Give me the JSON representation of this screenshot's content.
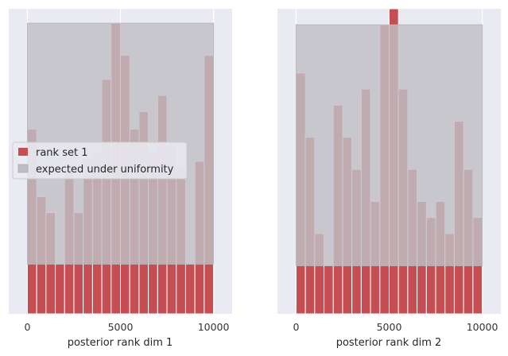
{
  "chart_data": [
    {
      "type": "bar",
      "xlabel": "posterior rank dim 1",
      "ylabel": "",
      "xlim": [
        -1000,
        11000
      ],
      "xticks": [
        0,
        5000,
        10000
      ],
      "xtick_labels": [
        "0",
        "5000",
        "10000"
      ],
      "ylim": [
        0,
        19
      ],
      "grid": true,
      "bin_edges": [
        0,
        500,
        1000,
        1500,
        2000,
        2500,
        3000,
        3500,
        4000,
        4500,
        5000,
        5500,
        6000,
        6500,
        7000,
        7500,
        8000,
        8500,
        9000,
        9500,
        10000
      ],
      "series": [
        {
          "name": "rank set 1",
          "color": "#c44e52",
          "values": [
            11.5,
            7.3,
            6.3,
            3.1,
            9.2,
            6.3,
            9.7,
            10.1,
            14.6,
            18.1,
            16.1,
            11.5,
            12.6,
            10.1,
            13.6,
            10.6,
            9.2,
            3.1,
            9.5,
            16.1
          ]
        },
        {
          "name": "expected under uniformity",
          "color": "#808080",
          "band": [
            3.1,
            18.1
          ]
        }
      ],
      "legend": {
        "placement": "center-left"
      }
    },
    {
      "type": "bar",
      "xlabel": "posterior rank dim 2",
      "ylabel": "",
      "xlim": [
        -1000,
        11000
      ],
      "xticks": [
        0,
        5000,
        10000
      ],
      "xtick_labels": [
        "0",
        "5000",
        "10000"
      ],
      "ylim": [
        0,
        19
      ],
      "grid": true,
      "bin_edges": [
        0,
        500,
        1000,
        1500,
        2000,
        2500,
        3000,
        3500,
        4000,
        4500,
        5000,
        5500,
        6000,
        6500,
        7000,
        7500,
        8000,
        8500,
        9000,
        9500,
        10000
      ],
      "series": [
        {
          "name": "rank set 1",
          "color": "#c44e52",
          "values": [
            15.0,
            11.0,
            5.0,
            3.0,
            13.0,
            11.0,
            9.0,
            14.0,
            7.0,
            18.0,
            19.0,
            14.0,
            9.0,
            7.0,
            6.0,
            7.0,
            5.0,
            12.0,
            9.0,
            6.0
          ]
        },
        {
          "name": "expected under uniformity",
          "color": "#808080",
          "band": [
            3.0,
            18.0
          ]
        }
      ]
    }
  ]
}
